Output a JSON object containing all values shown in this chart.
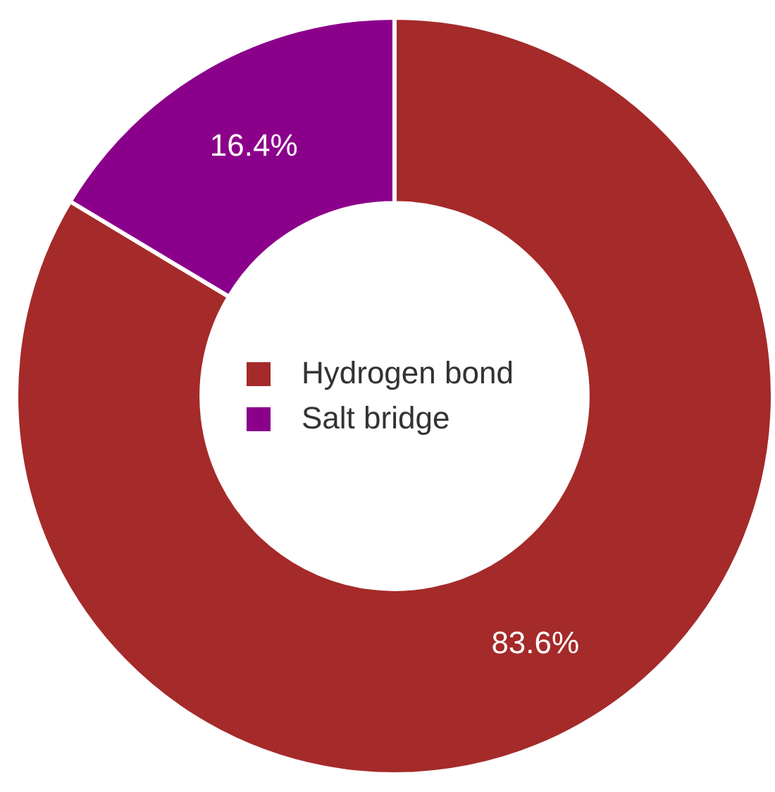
{
  "chart_data": {
    "type": "donut",
    "categories": [
      "Hydrogen bond",
      "Salt bridge"
    ],
    "values": [
      83.6,
      16.4
    ],
    "colors": [
      "#a52a2a",
      "#8b008b"
    ],
    "value_labels": [
      "83.6%",
      "16.4%"
    ],
    "legend": "center"
  }
}
